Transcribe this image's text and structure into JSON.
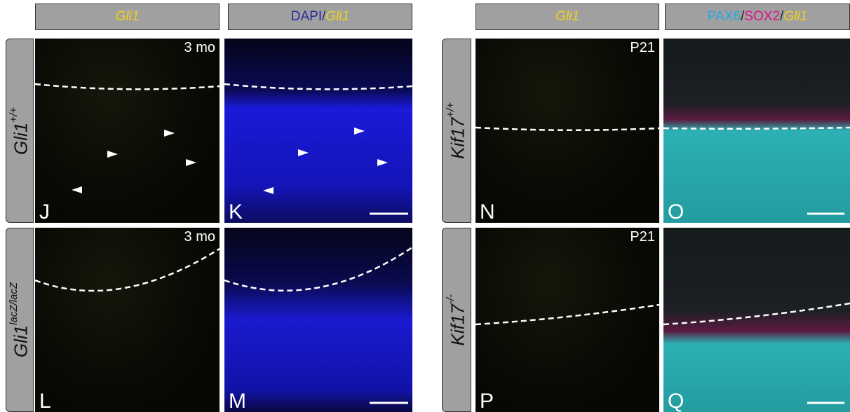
{
  "left": {
    "headers": [
      {
        "parts": [
          "Gli1"
        ]
      },
      {
        "parts": [
          "DAPI/",
          "Gli1"
        ]
      }
    ],
    "rows": [
      {
        "label": [
          "Gli1",
          "+/+"
        ],
        "panels": [
          {
            "letter": "J",
            "note": "3 mo"
          },
          {
            "letter": "K"
          }
        ]
      },
      {
        "label": [
          "Gli1",
          "lacZ/lacZ"
        ],
        "panels": [
          {
            "letter": "L",
            "note": "3 mo"
          },
          {
            "letter": "M"
          }
        ]
      }
    ]
  },
  "right": {
    "headers": [
      {
        "parts": [
          "Gli1"
        ]
      },
      {
        "parts": [
          "PAX6",
          "/",
          "SOX2",
          "/",
          "Gli1"
        ]
      }
    ],
    "rows": [
      {
        "label": [
          "Kif17",
          "+/+"
        ],
        "panels": [
          {
            "letter": "N",
            "note": "P21"
          },
          {
            "letter": "O"
          }
        ]
      },
      {
        "label": [
          "Kif17",
          "-/-"
        ],
        "panels": [
          {
            "letter": "P",
            "note": "P21"
          },
          {
            "letter": "Q"
          }
        ]
      }
    ]
  }
}
